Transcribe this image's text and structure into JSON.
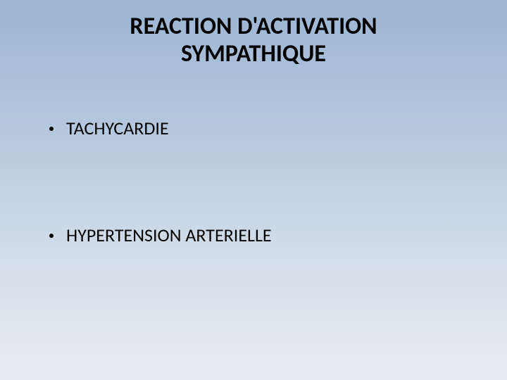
{
  "slide": {
    "title_line1": "REACTION D'ACTIVATION",
    "title_line2": "SYMPATHIQUE",
    "title_fontsize": 34,
    "title_color": "#000000",
    "title_fontweight": "bold",
    "bullets": [
      {
        "text": "TACHYCARDIE"
      },
      {
        "text": "HYPERTENSION ARTERIELLE"
      }
    ],
    "bullet_fontsize": 26,
    "bullet_color": "#000000",
    "background_gradient": {
      "top": "#9db5d3",
      "mid1": "#b5c8de",
      "mid2": "#d0dce9",
      "bottom": "#e8edf3"
    }
  }
}
